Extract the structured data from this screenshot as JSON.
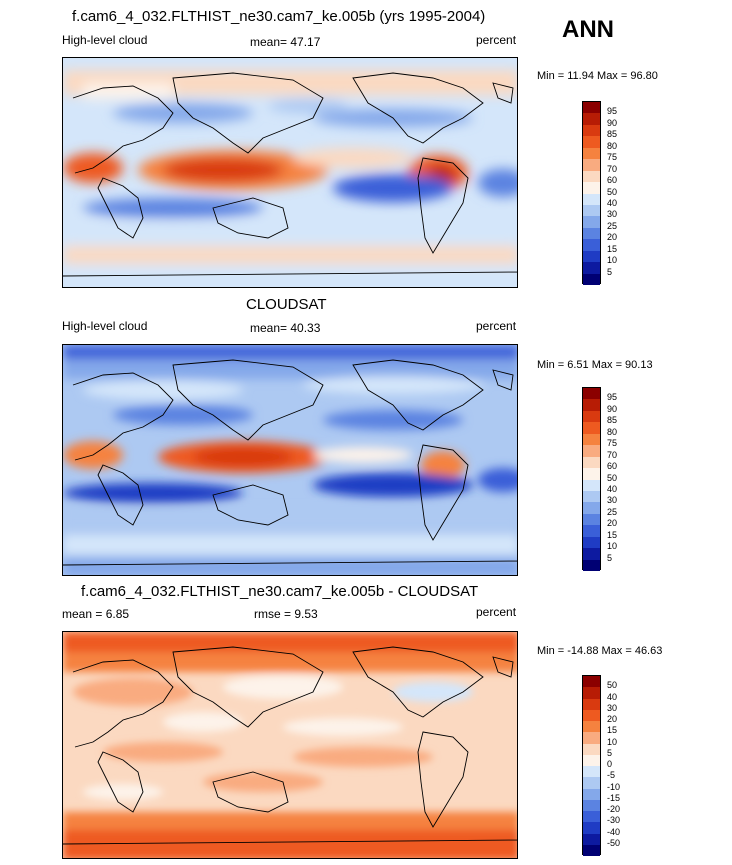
{
  "header": {
    "title": "f.cam6_4_032.FLTHIST_ne30.cam7_ke.005b (yrs 1995-2004)",
    "season": "ANN"
  },
  "panels": [
    {
      "id": "model",
      "left_label": "High-level cloud",
      "mean_text": "mean=  47.17",
      "units": "percent",
      "minmax": "Min =  11.94 Max =  96.80",
      "levels": [
        "95",
        "90",
        "85",
        "80",
        "75",
        "70",
        "60",
        "50",
        "40",
        "30",
        "25",
        "20",
        "15",
        "10",
        "5"
      ],
      "colors": [
        "#8b0000",
        "#b71c05",
        "#d93a10",
        "#ee5a20",
        "#f5823f",
        "#f9ab80",
        "#fbd9c1",
        "#fdf3ea",
        "#d4e6fa",
        "#adc9f2",
        "#84a8ea",
        "#5b83e1",
        "#3a5fd8",
        "#1f3cc4",
        "#0d1aa0",
        "#000073"
      ]
    },
    {
      "id": "obs",
      "title": "CLOUDSAT",
      "left_label": "High-level cloud",
      "mean_text": "mean=  40.33",
      "units": "percent",
      "minmax": "Min =   6.51 Max =  90.13",
      "levels": [
        "95",
        "90",
        "85",
        "80",
        "75",
        "70",
        "60",
        "50",
        "40",
        "30",
        "25",
        "20",
        "15",
        "10",
        "5"
      ],
      "colors": [
        "#8b0000",
        "#b71c05",
        "#d93a10",
        "#ee5a20",
        "#f5823f",
        "#f9ab80",
        "#fbd9c1",
        "#fdf3ea",
        "#d4e6fa",
        "#adc9f2",
        "#84a8ea",
        "#5b83e1",
        "#3a5fd8",
        "#1f3cc4",
        "#0d1aa0",
        "#000073"
      ]
    },
    {
      "id": "diff",
      "title": "f.cam6_4_032.FLTHIST_ne30.cam7_ke.005b - CLOUDSAT",
      "left_label": "mean =   6.85",
      "mid_label": "rmse =   9.53",
      "units": "percent",
      "minmax": "Min = -14.88 Max =  46.63",
      "levels": [
        "50",
        "40",
        "30",
        "20",
        "15",
        "10",
        "5",
        "0",
        "-5",
        "-10",
        "-15",
        "-20",
        "-30",
        "-40",
        "-50"
      ],
      "colors": [
        "#8b0000",
        "#b71c05",
        "#d93a10",
        "#ee5a20",
        "#f5823f",
        "#f9ab80",
        "#fbd9c1",
        "#fdf3ea",
        "#d4e6fa",
        "#adc9f2",
        "#84a8ea",
        "#5b83e1",
        "#3a5fd8",
        "#1f3cc4",
        "#0d1aa0",
        "#000073"
      ]
    }
  ]
}
